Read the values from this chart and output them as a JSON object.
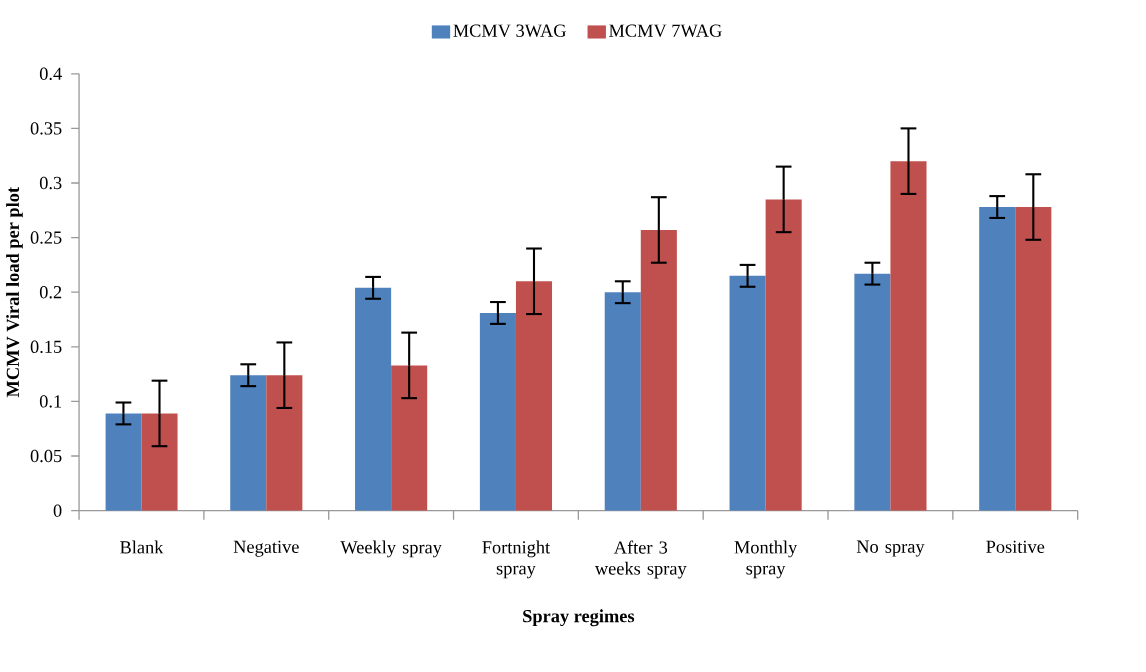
{
  "chart_data": {
    "type": "bar",
    "xlabel": "Spray regimes",
    "ylabel": "MCMV Viral load per plot",
    "categories": [
      "Blank",
      "Negative",
      "Weekly spray",
      "Fortnight spray",
      "After 3 weeks spray",
      "Monthly spray",
      "No spray",
      "Positive"
    ],
    "series": [
      {
        "name": "MCMV 3WAG",
        "color": "#4f81bd",
        "values": [
          0.089,
          0.124,
          0.204,
          0.181,
          0.2,
          0.215,
          0.217,
          0.278
        ],
        "errors": [
          0.01,
          0.01,
          0.01,
          0.01,
          0.01,
          0.01,
          0.01,
          0.01
        ]
      },
      {
        "name": "MCMV 7WAG",
        "color": "#c0504d",
        "values": [
          0.089,
          0.124,
          0.133,
          0.21,
          0.257,
          0.285,
          0.32,
          0.278
        ],
        "errors": [
          0.03,
          0.03,
          0.03,
          0.03,
          0.03,
          0.03,
          0.03,
          0.03
        ]
      }
    ],
    "ylim": [
      0,
      0.4
    ],
    "yticks": [
      0,
      0.05,
      0.1,
      0.15,
      0.2,
      0.25,
      0.3,
      0.35,
      0.4
    ],
    "legend": "top"
  }
}
